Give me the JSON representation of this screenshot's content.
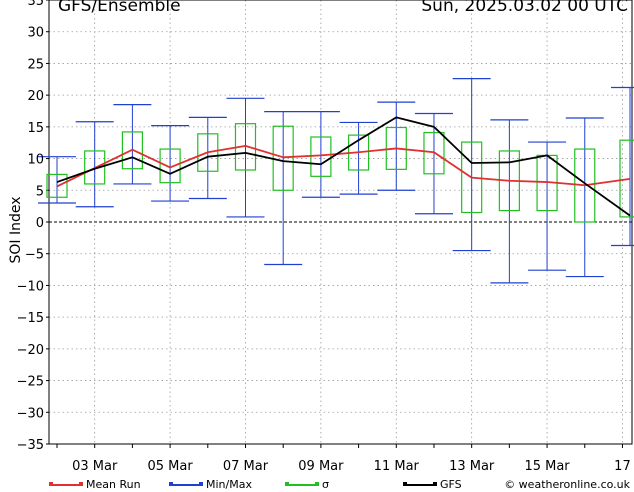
{
  "header": {
    "title": "GFS/Ensemble",
    "datetime": "Sun, 2025.03.02   00 UTC"
  },
  "legend": {
    "items": [
      {
        "label": "Mean Run",
        "color": "#e03030"
      },
      {
        "label": "Min/Max",
        "color": "#2040d0"
      },
      {
        "label": "σ",
        "color": "#20c020"
      },
      {
        "label": "GFS",
        "color": "#000000"
      }
    ],
    "credit": "© weatheronline.co.uk"
  },
  "chart_data": {
    "type": "line",
    "title": "",
    "xlabel": "",
    "ylabel": "SOI Index",
    "ylim": [
      -35,
      35
    ],
    "yticks": [
      35,
      30,
      25,
      20,
      15,
      10,
      5,
      0,
      -5,
      -10,
      -15,
      -20,
      -25,
      -30,
      -35
    ],
    "x_ticks": [
      {
        "x": 1,
        "label": "03 Mar"
      },
      {
        "x": 3,
        "label": "05 Mar"
      },
      {
        "x": 5,
        "label": "07 Mar"
      },
      {
        "x": 7,
        "label": "09 Mar"
      },
      {
        "x": 9,
        "label": "11 Mar"
      },
      {
        "x": 11,
        "label": "13 Mar"
      },
      {
        "x": 13,
        "label": "15 Mar"
      },
      {
        "x": 15,
        "label": "17"
      }
    ],
    "xlim": [
      0,
      15.2
    ],
    "grid": true,
    "zero_line": true,
    "series": [
      {
        "name": "Mean Run",
        "color": "#e03030",
        "x": [
          0,
          1,
          2,
          3,
          4,
          5,
          6,
          7,
          8,
          9,
          10,
          11,
          12,
          13,
          14,
          15.2
        ],
        "values": [
          5.6,
          8.5,
          11.4,
          8.6,
          11.0,
          12.0,
          10.2,
          10.5,
          11.0,
          11.6,
          11.0,
          7.0,
          6.5,
          6.3,
          5.8,
          6.8
        ]
      },
      {
        "name": "GFS",
        "color": "#000000",
        "x": [
          0,
          1,
          2,
          3,
          4,
          5,
          6,
          7,
          8,
          9,
          10,
          11,
          12,
          13,
          14,
          15.2
        ],
        "values": [
          6.3,
          8.4,
          10.2,
          7.6,
          10.3,
          10.9,
          9.6,
          9.1,
          12.9,
          16.5,
          15.0,
          9.3,
          9.4,
          10.5,
          6.1,
          1.0
        ]
      },
      {
        "name": "Min/Max",
        "color": "#2040d0",
        "kind": "whisker",
        "x": [
          0,
          1,
          2,
          3,
          4,
          5,
          6,
          7,
          8,
          9,
          10,
          11,
          12,
          13,
          14,
          15.2
        ],
        "min": [
          3.0,
          2.4,
          6.0,
          3.3,
          3.7,
          0.8,
          -6.7,
          3.9,
          4.4,
          5.0,
          1.3,
          -4.5,
          -9.6,
          -7.6,
          -8.6,
          -3.7
        ],
        "max": [
          10.3,
          15.8,
          18.5,
          15.2,
          16.5,
          19.5,
          17.4,
          17.4,
          15.7,
          18.9,
          17.1,
          22.6,
          16.1,
          12.6,
          16.4,
          21.2
        ]
      },
      {
        "name": "σ",
        "color": "#20c020",
        "kind": "box",
        "x": [
          0,
          1,
          2,
          3,
          4,
          5,
          6,
          7,
          8,
          9,
          10,
          11,
          12,
          13,
          14,
          15.2
        ],
        "low": [
          3.9,
          6.0,
          8.4,
          6.2,
          8.0,
          8.2,
          5.0,
          7.2,
          8.2,
          8.3,
          7.6,
          1.5,
          1.8,
          1.8,
          0.0,
          0.8
        ],
        "high": [
          7.5,
          11.2,
          14.2,
          11.5,
          13.9,
          15.5,
          15.1,
          13.4,
          13.7,
          14.9,
          14.1,
          12.6,
          11.2,
          10.5,
          11.5,
          12.9
        ]
      }
    ]
  }
}
